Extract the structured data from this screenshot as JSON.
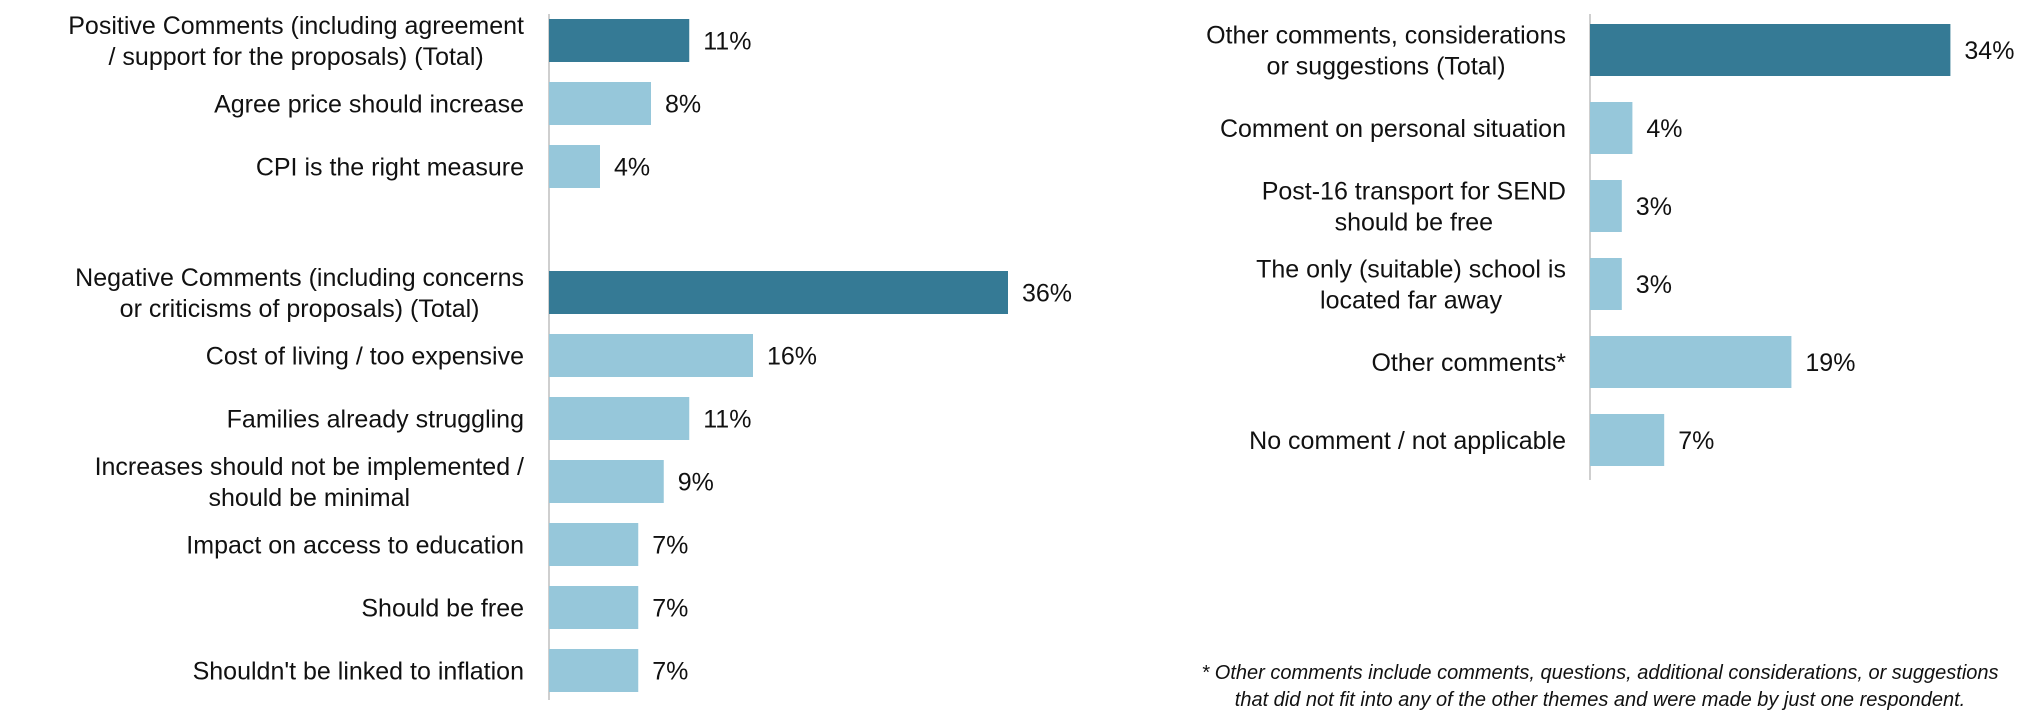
{
  "chart_data": [
    {
      "type": "bar",
      "orientation": "horizontal",
      "categories": [
        "Positive Comments (including agreement / support for the proposals) (Total)",
        "Agree price should increase",
        "CPI is the right measure",
        "",
        "Negative Comments (including concerns or criticisms of proposals) (Total)",
        "Cost of living / too expensive",
        "Families already struggling",
        "Increases should not be implemented / should be minimal",
        "Impact on access to education",
        "Should be free",
        "Shouldn't be linked to inflation"
      ],
      "values": [
        11,
        8,
        4,
        null,
        36,
        16,
        11,
        9,
        7,
        7,
        7
      ],
      "value_labels": [
        "11%",
        "8%",
        "4%",
        "",
        "36%",
        "16%",
        "11%",
        "9%",
        "7%",
        "7%",
        "7%"
      ],
      "is_total": [
        true,
        false,
        false,
        false,
        true,
        false,
        false,
        false,
        false,
        false,
        false
      ],
      "xlim": [
        0,
        40
      ],
      "grid": false,
      "colors": {
        "total": "#357A95",
        "item": "#96C7DA",
        "axis": "#BFBFBF"
      }
    },
    {
      "type": "bar",
      "orientation": "horizontal",
      "categories": [
        "Other comments, considerations or suggestions (Total)",
        "Comment on personal situation",
        "Post-16 transport for SEND should be free",
        "The only (suitable) school is located far away",
        "Other comments*",
        "No comment / not applicable"
      ],
      "values": [
        34,
        4,
        3,
        3,
        19,
        7
      ],
      "value_labels": [
        "34%",
        "4%",
        "3%",
        "3%",
        "19%",
        "7%"
      ],
      "is_total": [
        true,
        false,
        false,
        false,
        false,
        false
      ],
      "xlim": [
        0,
        40
      ],
      "grid": false,
      "colors": {
        "total": "#357A95",
        "item": "#96C7DA",
        "axis": "#BFBFBF"
      }
    }
  ],
  "footnote": "* Other comments include comments, questions, additional considerations, or suggestions that did not fit into any of the other themes and were made by just one respondent."
}
